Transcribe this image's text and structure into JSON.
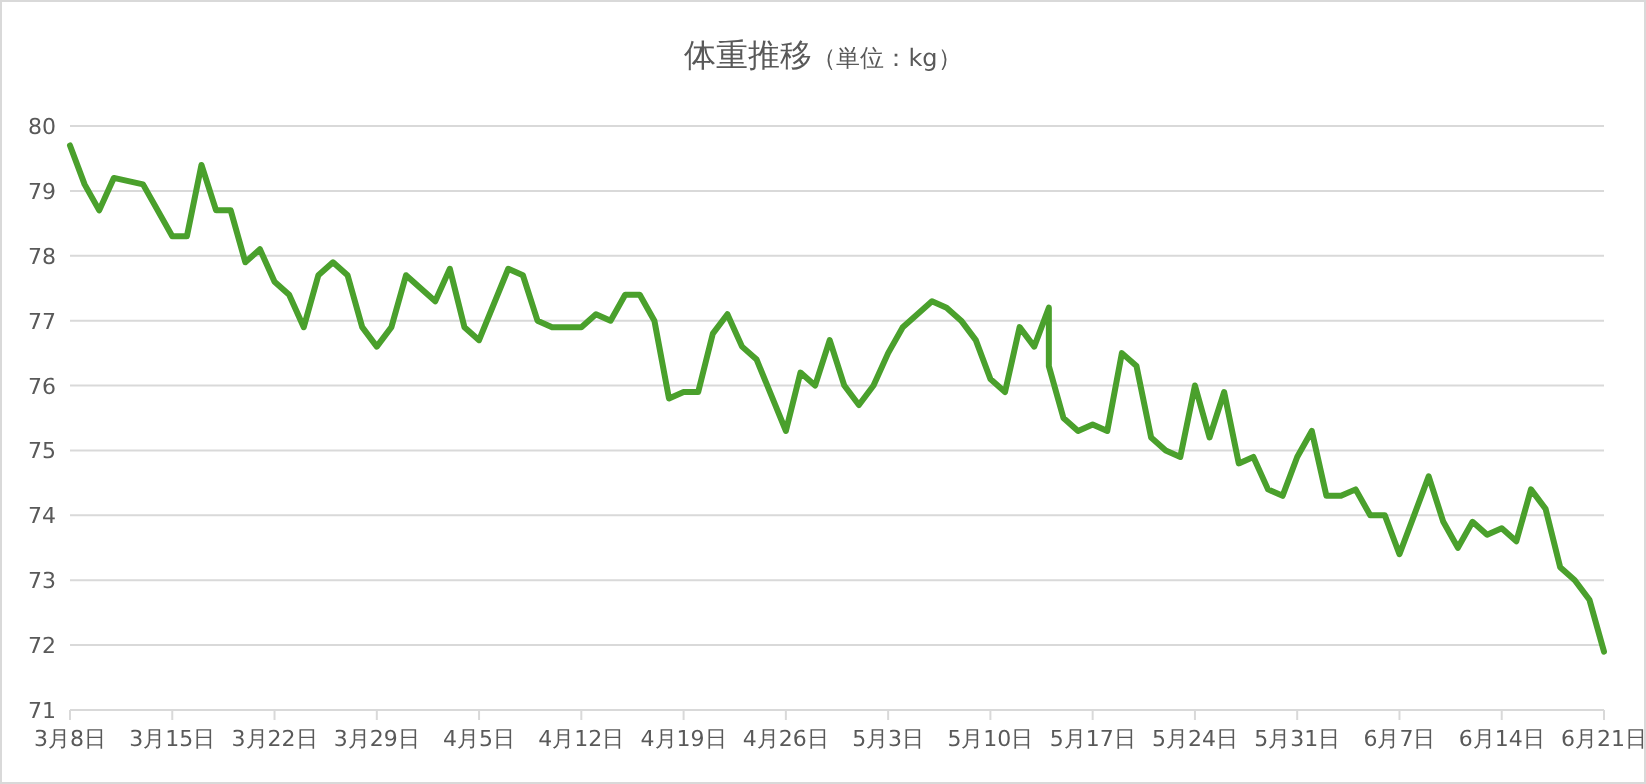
{
  "chart_data": {
    "type": "line",
    "title": "体重推移",
    "subtitle": "（単位：kg）",
    "x": [
      "--03-08",
      "--03-09",
      "--03-10",
      "--03-11",
      "--03-13",
      "--03-15",
      "--03-16",
      "--03-17",
      "--03-18",
      "--03-19",
      "--03-20",
      "--03-21",
      "--03-22",
      "--03-23",
      "--03-24",
      "--03-25",
      "--03-26",
      "--03-27",
      "--03-28",
      "--03-29",
      "--03-30",
      "--03-31",
      "--04-02",
      "--04-03",
      "--04-04",
      "--04-05",
      "--04-07",
      "--04-08",
      "--04-09",
      "--04-10",
      "--04-12",
      "--04-13",
      "--04-14",
      "--04-15",
      "--04-16",
      "--04-17",
      "--04-18",
      "--04-19",
      "--04-20",
      "--04-21",
      "--04-22",
      "--04-23",
      "--04-24",
      "--04-26",
      "--04-27",
      "--04-28",
      "--04-29",
      "--04-30",
      "--05-01",
      "--05-02",
      "--05-03",
      "--05-04",
      "--05-06",
      "--05-07",
      "--05-08",
      "--05-09",
      "--05-10",
      "--05-11",
      "--05-12",
      "--05-13",
      "--05-14",
      "--05-14",
      "--05-15",
      "--05-16",
      "--05-17",
      "--05-18",
      "--05-19",
      "--05-20",
      "--05-21",
      "--05-22",
      "--05-23",
      "--05-24",
      "--05-25",
      "--05-26",
      "--05-27",
      "--05-28",
      "--05-29",
      "--05-30",
      "--05-31",
      "--06-01",
      "--06-02",
      "--06-03",
      "--06-04",
      "--06-05",
      "--06-06",
      "--06-07",
      "--06-08",
      "--06-09",
      "--06-10",
      "--06-11",
      "--06-12",
      "--06-13",
      "--06-14",
      "--06-15",
      "--06-16",
      "--06-17",
      "--06-18",
      "--06-19",
      "--06-20",
      "--06-21"
    ],
    "series": [
      {
        "color": "#4aa02c",
        "values": [
          79.7,
          79.1,
          78.7,
          79.2,
          79.1,
          78.3,
          78.3,
          79.4,
          78.7,
          78.7,
          77.9,
          78.1,
          77.6,
          77.4,
          76.9,
          77.7,
          77.9,
          77.7,
          76.9,
          76.6,
          76.9,
          77.7,
          77.3,
          77.8,
          76.9,
          76.7,
          77.8,
          77.7,
          77.0,
          76.9,
          76.9,
          77.1,
          77.0,
          77.4,
          77.4,
          77.0,
          75.8,
          75.9,
          75.9,
          76.8,
          77.1,
          76.6,
          76.4,
          75.3,
          76.2,
          76.0,
          76.7,
          76.0,
          75.7,
          76.0,
          76.5,
          76.9,
          77.3,
          77.2,
          77.0,
          76.7,
          76.1,
          75.9,
          76.9,
          76.6,
          77.2,
          76.3,
          75.5,
          75.3,
          75.4,
          75.3,
          76.5,
          76.3,
          75.2,
          75.0,
          74.9,
          76.0,
          75.2,
          75.9,
          74.8,
          74.9,
          74.4,
          74.3,
          74.9,
          75.3,
          74.3,
          74.3,
          74.4,
          74.0,
          74.0,
          73.4,
          74.0,
          74.6,
          73.9,
          73.5,
          73.9,
          73.7,
          73.8,
          73.6,
          74.4,
          74.1,
          73.2,
          73.0,
          72.7,
          71.9
        ]
      }
    ],
    "xlim": [
      "--03-08",
      "--06-21"
    ],
    "xticks": [
      {
        "value": "--03-08",
        "label": "3月8日"
      },
      {
        "value": "--03-15",
        "label": "3月15日"
      },
      {
        "value": "--03-22",
        "label": "3月22日"
      },
      {
        "value": "--03-29",
        "label": "3月29日"
      },
      {
        "value": "--04-05",
        "label": "4月5日"
      },
      {
        "value": "--04-12",
        "label": "4月12日"
      },
      {
        "value": "--04-19",
        "label": "4月19日"
      },
      {
        "value": "--04-26",
        "label": "4月26日"
      },
      {
        "value": "--05-03",
        "label": "5月3日"
      },
      {
        "value": "--05-10",
        "label": "5月10日"
      },
      {
        "value": "--05-17",
        "label": "5月17日"
      },
      {
        "value": "--05-24",
        "label": "5月24日"
      },
      {
        "value": "--05-31",
        "label": "5月31日"
      },
      {
        "value": "--06-07",
        "label": "6月7日"
      },
      {
        "value": "--06-14",
        "label": "6月14日"
      },
      {
        "value": "--06-21",
        "label": "6月21日"
      }
    ],
    "ylim": [
      71,
      80
    ],
    "yticks": [
      71,
      72,
      73,
      74,
      75,
      76,
      77,
      78,
      79,
      80
    ],
    "grid": "y",
    "marker": "none",
    "line_style": "solid"
  }
}
